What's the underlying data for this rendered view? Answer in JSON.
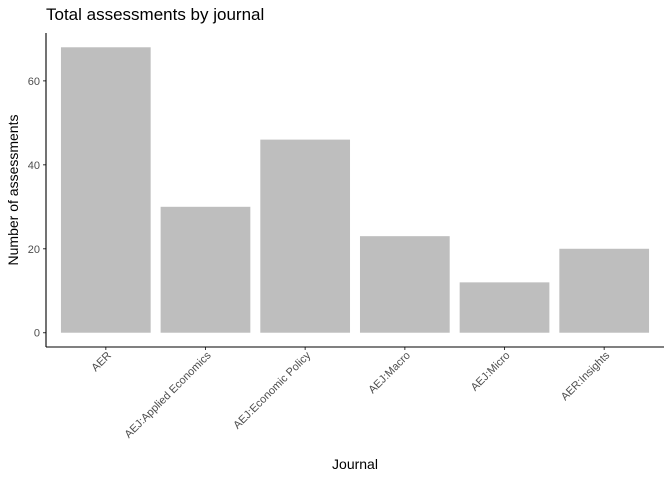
{
  "chart_data": {
    "type": "bar",
    "title": "Total assessments by journal",
    "xlabel": "Journal",
    "ylabel": "Number of assessments",
    "categories": [
      "AER",
      "AEJ:Applied Economics",
      "AEJ:Economic Policy",
      "AEJ:Macro",
      "AEJ:Micro",
      "AER:Insights"
    ],
    "values": [
      68,
      30,
      46,
      23,
      12,
      20
    ],
    "ylim": [
      -3.4,
      71.4
    ],
    "yticks": [
      0,
      20,
      40,
      60
    ],
    "grid": false,
    "legend": "none",
    "bar_color": "#bebebe",
    "axis_color": "#000000"
  }
}
